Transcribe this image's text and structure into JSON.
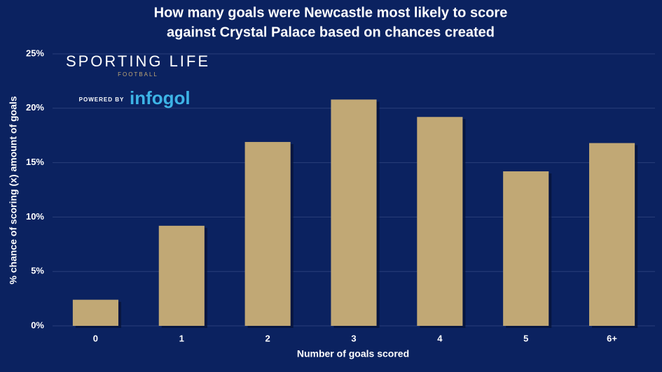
{
  "chart_data": {
    "type": "bar",
    "title": [
      "How many goals were Newcastle most likely to score",
      "against Crystal Palace based on chances created"
    ],
    "x_label": "Number of goals scored",
    "y_label": "% chance of scoring (x) amount of goals",
    "categories": [
      "0",
      "1",
      "2",
      "3",
      "4",
      "5",
      "6+"
    ],
    "values": [
      2.4,
      9.2,
      16.9,
      20.8,
      19.2,
      14.2,
      16.8
    ],
    "color": "#c1a875",
    "ylim": [
      0,
      25
    ],
    "yticks": [
      {
        "value": 0,
        "label": "0%"
      },
      {
        "value": 5,
        "label": "5%"
      },
      {
        "value": 10,
        "label": "10%"
      },
      {
        "value": 15,
        "label": "15%"
      },
      {
        "value": 20,
        "label": "20%"
      },
      {
        "value": 25,
        "label": "25%"
      }
    ],
    "grid": true
  },
  "branding": {
    "name": "SPORTING LIFE",
    "section": "FOOTBALL",
    "powered": "POWERED BY",
    "partner": "infogol"
  }
}
